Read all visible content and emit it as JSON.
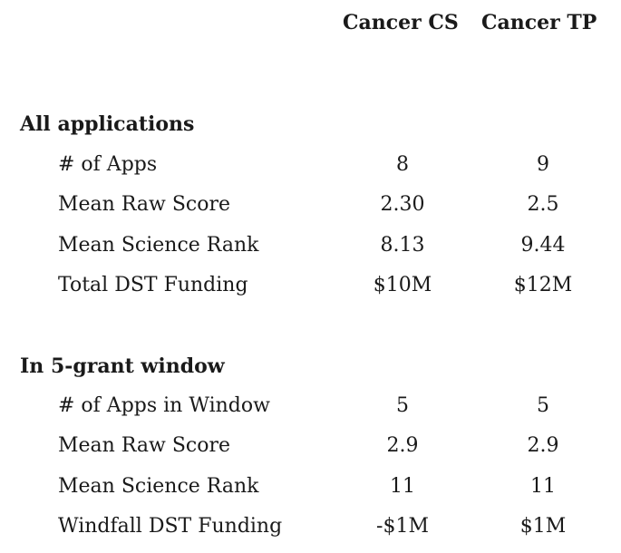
{
  "columns": [
    "Cancer CS",
    "Cancer TP"
  ],
  "sections": [
    {
      "title": "All applications",
      "rows": [
        {
          "label": "# of Apps",
          "values": [
            "8",
            "9"
          ]
        },
        {
          "label": "Mean Raw Score",
          "values": [
            "2.30",
            "2.5"
          ]
        },
        {
          "label": "Mean Science Rank",
          "values": [
            "8.13",
            "9.44"
          ]
        },
        {
          "label": "Total DST Funding",
          "values": [
            "$10M",
            "$12M"
          ]
        }
      ]
    },
    {
      "title": "In 5-grant window",
      "rows": [
        {
          "label": "# of Apps in Window",
          "values": [
            "5",
            "5"
          ]
        },
        {
          "label": "Mean Raw Score",
          "values": [
            "2.9",
            "2.9"
          ]
        },
        {
          "label": "Mean Science Rank",
          "values": [
            "11",
            "11"
          ]
        },
        {
          "label": "Windfall DST Funding",
          "values": [
            "-$1M",
            "$1M"
          ]
        }
      ]
    }
  ]
}
